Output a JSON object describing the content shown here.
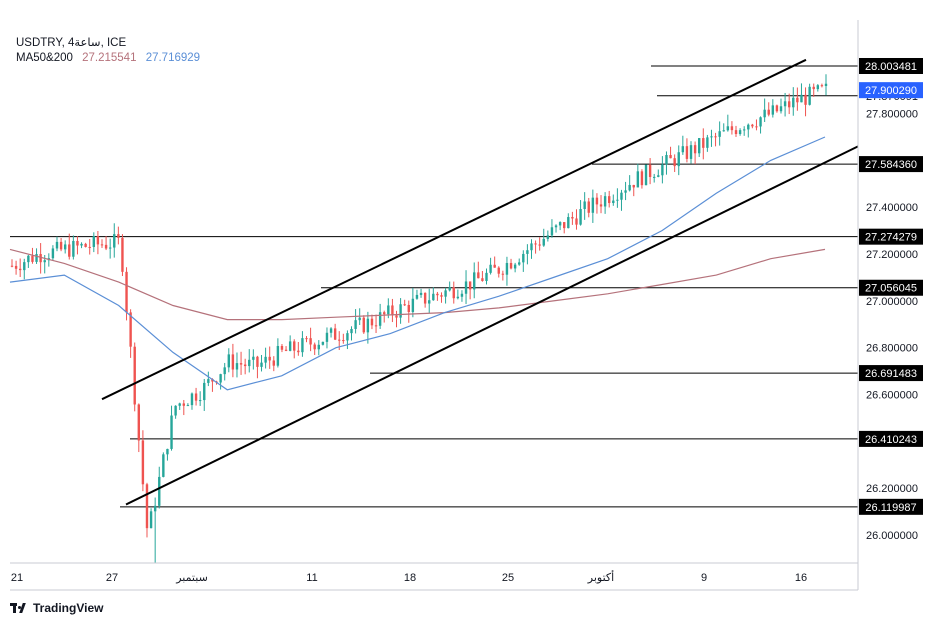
{
  "header": {
    "line1": "USDTRY, 4ساعة, ICE",
    "ma_label": "MA50&200",
    "ma50_value": "27.215541",
    "ma200_value": "27.716929"
  },
  "brand": {
    "logo_text": "TradingView"
  },
  "colors": {
    "up": "#26a69a",
    "down": "#ef5350",
    "ma_short": "#5b8fd6",
    "ma_long": "#b5727b",
    "current_price_bg": "#2962ff",
    "price_tag_bg": "#000000"
  },
  "chart_data": {
    "type": "line",
    "symbol": "USDTRY",
    "timeframe": "4ساعة",
    "source": "ICE",
    "x_ticks": [
      "21",
      "27",
      "سبتمبر",
      "11",
      "18",
      "25",
      "أكتوبر",
      "9",
      "16"
    ],
    "y_ticks": [
      "26.000000",
      "26.200000",
      "26.400000",
      "26.600000",
      "26.800000",
      "27.000000",
      "27.200000",
      "27.400000",
      "27.800000"
    ],
    "ylim": [
      25.88,
      28.2
    ],
    "current_price": {
      "value": 27.90029,
      "label": "27.900290"
    },
    "partial_label": "27.876091",
    "horizontal_levels": [
      {
        "value": 28.003481,
        "label": "28.003481"
      },
      {
        "value": 27.87609,
        "label": ""
      },
      {
        "value": 27.58436,
        "label": "27.584360"
      },
      {
        "value": 27.274279,
        "label": "27.274279"
      },
      {
        "value": 27.056045,
        "label": "27.056045"
      },
      {
        "value": 26.691483,
        "label": "26.691483"
      },
      {
        "value": 26.410243,
        "label": "26.410243"
      },
      {
        "value": 26.119987,
        "label": "26.119987"
      }
    ],
    "channel": {
      "upper": [
        [
          26.58,
          28.03
        ]
      ],
      "lower": [
        [
          26.13,
          27.66
        ]
      ]
    },
    "series": [
      {
        "name": "MA50",
        "value": 27.215541,
        "values": [
          27.22,
          27.16,
          27.08,
          26.98,
          26.92,
          26.92,
          26.93,
          26.94,
          26.95,
          26.97,
          27.0,
          27.03,
          27.07,
          27.11,
          27.18,
          27.22
        ]
      },
      {
        "name": "MA200",
        "value": 27.716929,
        "values": [
          27.08,
          27.11,
          26.98,
          26.78,
          26.62,
          26.68,
          26.8,
          26.86,
          26.95,
          27.02,
          27.1,
          27.18,
          27.3,
          27.46,
          27.6,
          27.7
        ]
      }
    ],
    "price_path": [
      27.15,
      27.2,
      27.22,
      27.24,
      27.25,
      26.0,
      26.55,
      26.62,
      26.74,
      26.72,
      26.78,
      26.82,
      26.86,
      26.9,
      26.95,
      27.0,
      27.04,
      27.08,
      27.14,
      27.22,
      27.3,
      27.38,
      27.45,
      27.52,
      27.58,
      27.64,
      27.7,
      27.76,
      27.8,
      27.86,
      27.9
    ]
  }
}
